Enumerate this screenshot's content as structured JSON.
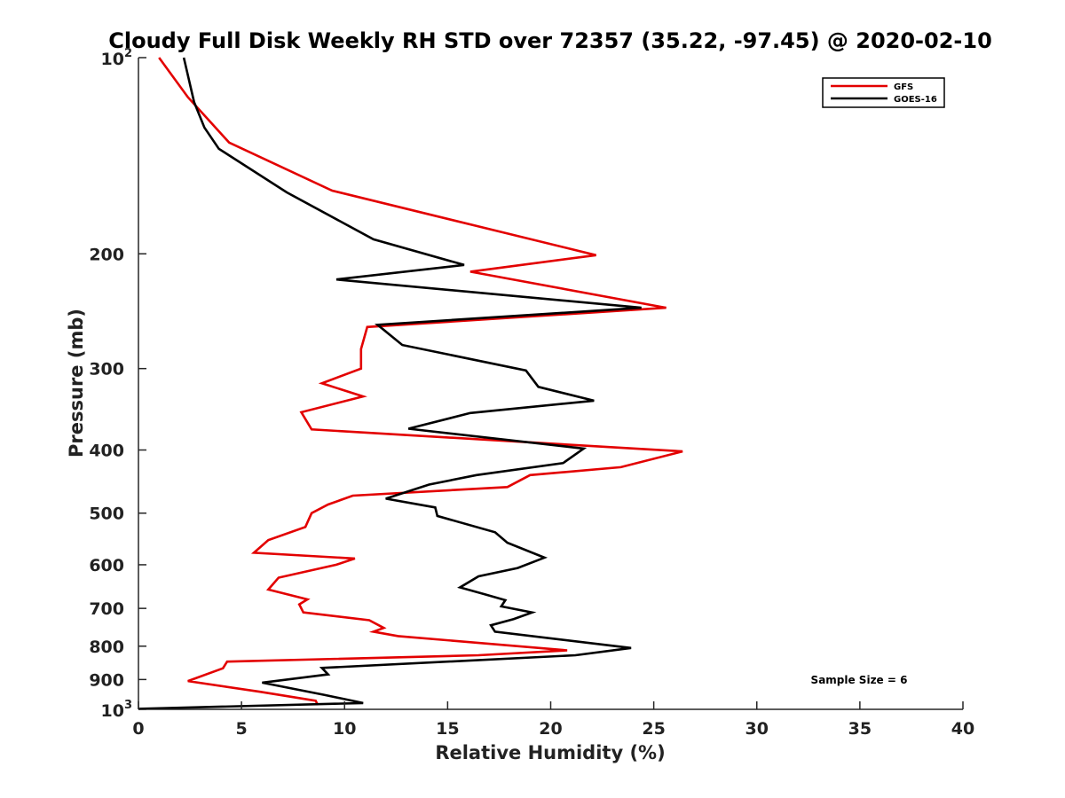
{
  "chart_data": {
    "type": "line",
    "title": "Cloudy Full Disk Weekly RH STD over 72357 (35.22, -97.45) @ 2020-02-10",
    "xlabel": "Relative Humidity (%)",
    "ylabel": "Pressure (mb)",
    "xlim": [
      0,
      40
    ],
    "ylim": [
      100,
      1000
    ],
    "y_scale": "log",
    "y_reversed": true,
    "grid": false,
    "legend_position": "top-right",
    "x_ticks": [
      "0",
      "5",
      "10",
      "15",
      "20",
      "25",
      "30",
      "35",
      "40"
    ],
    "x_tick_values": [
      0,
      5,
      10,
      15,
      20,
      25,
      30,
      35,
      40
    ],
    "y_ticks": [
      {
        "value": 100,
        "base": "10",
        "exp": "2"
      },
      {
        "value": 200,
        "label": "200"
      },
      {
        "value": 300,
        "label": "300"
      },
      {
        "value": 400,
        "label": "400"
      },
      {
        "value": 500,
        "label": "500"
      },
      {
        "value": 600,
        "label": "600"
      },
      {
        "value": 700,
        "label": "700"
      },
      {
        "value": 800,
        "label": "800"
      },
      {
        "value": 900,
        "label": "900"
      },
      {
        "value": 1000,
        "base": "10",
        "exp": "3"
      }
    ],
    "annotation": "Sample Size = 6",
    "series": [
      {
        "name": "GFS",
        "color": "#e30000",
        "points": [
          [
            1.0,
            100
          ],
          [
            2.4,
            115
          ],
          [
            4.4,
            135
          ],
          [
            9.4,
            160
          ],
          [
            22.2,
            201
          ],
          [
            16.1,
            213
          ],
          [
            25.6,
            242
          ],
          [
            11.1,
            259
          ],
          [
            10.8,
            280
          ],
          [
            10.8,
            300
          ],
          [
            8.9,
            316
          ],
          [
            10.9,
            331
          ],
          [
            7.9,
            350
          ],
          [
            8.4,
            372
          ],
          [
            26.4,
            402
          ],
          [
            23.4,
            425
          ],
          [
            19.0,
            437
          ],
          [
            17.9,
            456
          ],
          [
            10.4,
            470
          ],
          [
            9.2,
            485
          ],
          [
            8.4,
            500
          ],
          [
            8.1,
            525
          ],
          [
            6.3,
            550
          ],
          [
            5.6,
            575
          ],
          [
            10.5,
            587
          ],
          [
            9.6,
            600
          ],
          [
            6.8,
            628
          ],
          [
            6.3,
            655
          ],
          [
            8.2,
            678
          ],
          [
            7.8,
            690
          ],
          [
            8.0,
            710
          ],
          [
            11.2,
            730
          ],
          [
            11.9,
            750
          ],
          [
            11.4,
            760
          ],
          [
            12.6,
            772
          ],
          [
            20.8,
            812
          ],
          [
            16.5,
            826
          ],
          [
            4.3,
            845
          ],
          [
            4.1,
            865
          ],
          [
            2.4,
            905
          ],
          [
            5.9,
            940
          ],
          [
            8.6,
            970
          ],
          [
            8.7,
            985
          ]
        ]
      },
      {
        "name": "GOES-16",
        "color": "#000000",
        "points": [
          [
            2.2,
            100
          ],
          [
            2.7,
            117
          ],
          [
            3.2,
            128
          ],
          [
            3.9,
            138
          ],
          [
            7.2,
            161
          ],
          [
            11.4,
            190
          ],
          [
            15.8,
            208
          ],
          [
            9.6,
            219
          ],
          [
            24.4,
            242
          ],
          [
            11.6,
            257
          ],
          [
            12.8,
            276
          ],
          [
            18.8,
            302
          ],
          [
            19.4,
            320
          ],
          [
            22.1,
            336
          ],
          [
            16.1,
            351
          ],
          [
            13.1,
            371
          ],
          [
            21.6,
            398
          ],
          [
            20.6,
            419
          ],
          [
            16.4,
            437
          ],
          [
            14.1,
            452
          ],
          [
            12.0,
            475
          ],
          [
            14.4,
            490
          ],
          [
            14.5,
            505
          ],
          [
            17.3,
            535
          ],
          [
            17.9,
            555
          ],
          [
            19.7,
            585
          ],
          [
            18.4,
            607
          ],
          [
            16.5,
            625
          ],
          [
            15.6,
            650
          ],
          [
            16.8,
            666
          ],
          [
            17.8,
            680
          ],
          [
            17.6,
            695
          ],
          [
            19.1,
            710
          ],
          [
            18.2,
            727
          ],
          [
            17.1,
            743
          ],
          [
            17.3,
            760
          ],
          [
            23.9,
            805
          ],
          [
            21.2,
            826
          ],
          [
            8.9,
            864
          ],
          [
            9.2,
            884
          ],
          [
            6.0,
            910
          ],
          [
            9.0,
            950
          ],
          [
            10.9,
            978
          ],
          [
            0.0,
            998
          ]
        ]
      }
    ]
  }
}
